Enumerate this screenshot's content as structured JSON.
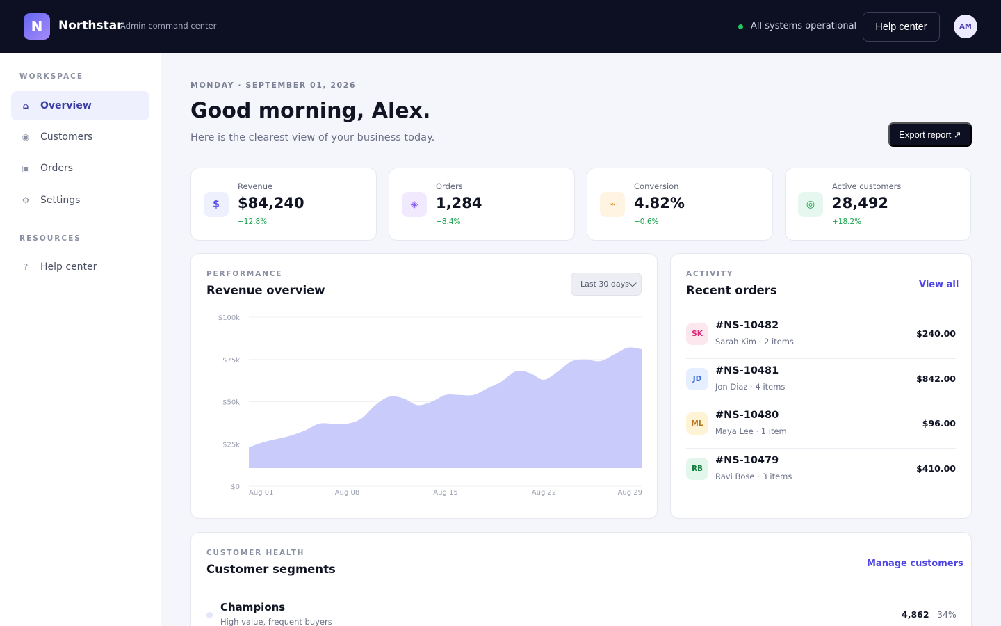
{
  "app": {
    "brand": "Northstar",
    "brand_sub": "Admin command center",
    "logo_letter": "N",
    "status_text": "All systems operational",
    "help_button": "Help center",
    "user_initials": "AM"
  },
  "sidebar": {
    "sections": [
      {
        "title": "WORKSPACE",
        "items": [
          {
            "label": "Overview",
            "icon": "home-icon",
            "glyph": "⌂",
            "active": true
          },
          {
            "label": "Customers",
            "icon": "users-icon",
            "glyph": "◉",
            "active": false
          },
          {
            "label": "Orders",
            "icon": "box-icon",
            "glyph": "▣",
            "active": false
          },
          {
            "label": "Settings",
            "icon": "gear-icon",
            "glyph": "⚙",
            "active": false
          }
        ]
      },
      {
        "title": "RESOURCES",
        "items": [
          {
            "label": "Help center",
            "icon": "help-icon",
            "glyph": "?",
            "active": false
          }
        ]
      }
    ]
  },
  "header": {
    "date": "MONDAY · SEPTEMBER 01, 2026",
    "greeting": "Good morning, Alex.",
    "subtitle": "Here is the clearest view of your business today.",
    "export_button": "Export report ↗"
  },
  "kpis": [
    {
      "label": "Revenue",
      "value": "$84,240",
      "delta": "+12.8%",
      "glyph": "$",
      "icon": "dollar-icon",
      "bg": "#eef0fd",
      "fg": "#4f46e5"
    },
    {
      "label": "Orders",
      "value": "1,284",
      "delta": "+8.4%",
      "glyph": "◈",
      "icon": "cube-icon",
      "bg": "#f1eafe",
      "fg": "#8b5cf6"
    },
    {
      "label": "Conversion",
      "value": "4.82%",
      "delta": "+0.6%",
      "glyph": "⌁",
      "icon": "bolt-icon",
      "bg": "#fff3e2",
      "fg": "#d97706"
    },
    {
      "label": "Active customers",
      "value": "28,492",
      "delta": "+18.2%",
      "glyph": "◎",
      "icon": "target-icon",
      "bg": "#e6f7ef",
      "fg": "#16a34a"
    }
  ],
  "performance": {
    "eyebrow": "PERFORMANCE",
    "title": "Revenue overview",
    "range": "Last 30 days"
  },
  "chart_data": {
    "type": "area",
    "title": "Revenue overview",
    "x": [
      "Aug 01",
      "Aug 02",
      "Aug 03",
      "Aug 04",
      "Aug 05",
      "Aug 06",
      "Aug 07",
      "Aug 08",
      "Aug 09",
      "Aug 10",
      "Aug 11",
      "Aug 12",
      "Aug 13",
      "Aug 14",
      "Aug 15",
      "Aug 16",
      "Aug 17",
      "Aug 18",
      "Aug 19",
      "Aug 20",
      "Aug 21",
      "Aug 22",
      "Aug 23",
      "Aug 24",
      "Aug 25",
      "Aug 26",
      "Aug 27",
      "Aug 28",
      "Aug 29"
    ],
    "xticks": [
      "Aug 01",
      "Aug 08",
      "Aug 15",
      "Aug 22",
      "Aug 29"
    ],
    "yticks": [
      "$0",
      "$25k",
      "$50k",
      "$75k",
      "$100k"
    ],
    "ylim": [
      0,
      100000
    ],
    "series": [
      {
        "values": [
          23000,
          26000,
          28000,
          30000,
          33000,
          37000,
          37000,
          37000,
          40000,
          48000,
          53000,
          52000,
          48000,
          50000,
          54000,
          54000,
          54000,
          58000,
          62000,
          68000,
          67000,
          63000,
          68000,
          74000,
          75000,
          74000,
          78000,
          82000,
          81000
        ]
      }
    ],
    "color": "#c9ccfb",
    "grid": true
  },
  "orders": {
    "eyebrow": "ACTIVITY",
    "title": "Recent orders",
    "view_all": "View all",
    "rows": [
      {
        "initials": "SK",
        "id": "#NS-10482",
        "meta": "Sarah Kim · 2 items",
        "amount": "$240.00",
        "bg": "#fde7ee",
        "fg": "#db2777"
      },
      {
        "initials": "JD",
        "id": "#NS-10481",
        "meta": "Jon Diaz · 4 items",
        "amount": "$842.00",
        "bg": "#e6efff",
        "fg": "#3b6fd8"
      },
      {
        "initials": "ML",
        "id": "#NS-10480",
        "meta": "Maya Lee · 1 item",
        "amount": "$96.00",
        "bg": "#fff3d6",
        "fg": "#b7791f"
      },
      {
        "initials": "RB",
        "id": "#NS-10479",
        "meta": "Ravi Bose · 3 items",
        "amount": "$410.00",
        "bg": "#e3f6ec",
        "fg": "#15803d"
      }
    ]
  },
  "segments": {
    "eyebrow": "CUSTOMER HEALTH",
    "title": "Customer segments",
    "manage": "Manage customers",
    "rows": [
      {
        "name": "Champions",
        "desc": "High value, frequent buyers",
        "count": "4,862",
        "pct": "34%"
      }
    ]
  }
}
